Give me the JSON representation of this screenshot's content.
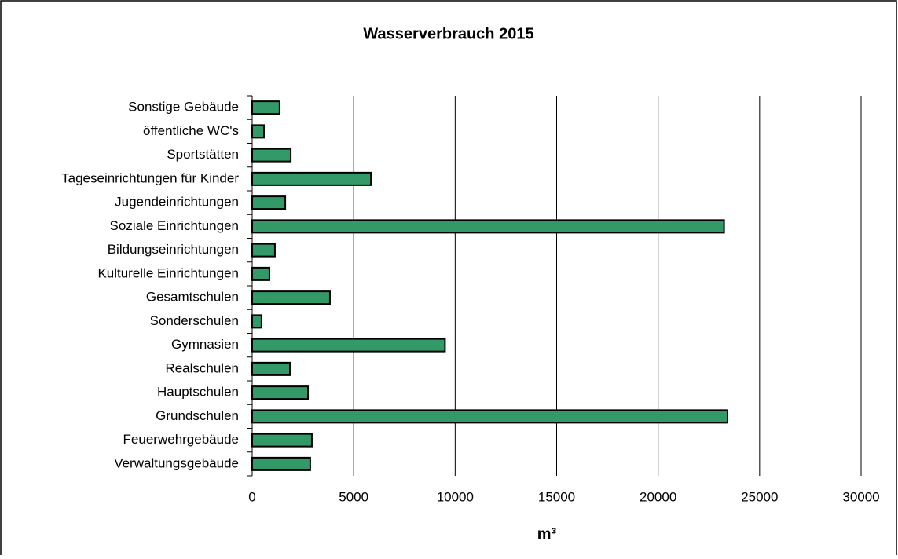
{
  "chart_data": {
    "type": "bar",
    "orientation": "horizontal",
    "title": "Wasserverbrauch 2015",
    "x_label": "m³",
    "categories": [
      "Sonstige Gebäude",
      "öffentliche WC's",
      "Sportstätten",
      "Tageseinrichtungen für Kinder",
      "Jugendeinrichtungen",
      "Soziale Einrichtungen",
      "Bildungseinrichtungen",
      "Kulturelle Einrichtungen",
      "Gesamtschulen",
      "Sonderschulen",
      "Gymnasien",
      "Realschulen",
      "Hauptschulen",
      "Grundschulen",
      "Feuerwehrgebäude",
      "Verwaltungsgebäude"
    ],
    "values": [
      1350,
      580,
      1900,
      5850,
      1630,
      23250,
      1120,
      850,
      3830,
      460,
      9500,
      1860,
      2750,
      23420,
      2940,
      2860
    ],
    "color": "#339966",
    "xlim": [
      0,
      30000
    ],
    "xticks": [
      0,
      5000,
      10000,
      15000,
      20000,
      25000,
      30000
    ],
    "grid": true
  }
}
